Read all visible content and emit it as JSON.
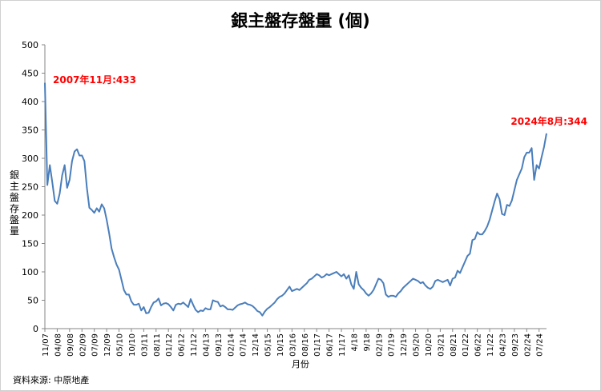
{
  "chart_data": {
    "type": "line",
    "title": "銀主盤存盤量 (個)",
    "xlabel": "月份",
    "ylabel": "銀主盤存盤量",
    "source": "資料來源: 中原地產",
    "ylim": [
      0,
      500
    ],
    "yticks": [
      0,
      50,
      100,
      150,
      200,
      250,
      300,
      350,
      400,
      450,
      500
    ],
    "grid": false,
    "line_color": "#4a7ebb",
    "annotation_color": "#ff0000",
    "xtick_labels": [
      "11/07",
      "04/08",
      "09/08",
      "02/09",
      "07/09",
      "12/09",
      "05/10",
      "10/10",
      "03/11",
      "08/11",
      "01/12",
      "06/12",
      "11/12",
      "04/13",
      "09/13",
      "02/14",
      "07/14",
      "12/14",
      "05/15",
      "10/15",
      "03/16",
      "08/16",
      "01/17",
      "06/17",
      "11/17",
      "4/18",
      "9/18",
      "02/19",
      "07/19",
      "12/19",
      "05/20",
      "10/20",
      "03/21",
      "08/21",
      "01/22",
      "06/22",
      "11/22",
      "04/23",
      "09/23",
      "02/24",
      "07/24"
    ],
    "annotations": [
      {
        "label": "2007年11月:433",
        "x": "2007-11",
        "y": 433
      },
      {
        "label": "2024年8月:344",
        "x": "2024-08",
        "y": 344
      }
    ],
    "x_start": "2007-11",
    "x_end": "2024-08",
    "values": [
      433,
      253,
      288,
      258,
      225,
      220,
      238,
      270,
      288,
      248,
      262,
      295,
      312,
      316,
      305,
      305,
      295,
      248,
      213,
      209,
      204,
      212,
      206,
      219,
      212,
      192,
      168,
      141,
      126,
      113,
      104,
      86,
      68,
      60,
      60,
      48,
      42,
      42,
      44,
      32,
      38,
      27,
      28,
      38,
      46,
      48,
      53,
      41,
      44,
      45,
      43,
      38,
      32,
      42,
      44,
      43,
      46,
      42,
      38,
      52,
      42,
      33,
      29,
      32,
      31,
      36,
      34,
      34,
      50,
      48,
      47,
      39,
      41,
      38,
      34,
      34,
      33,
      37,
      41,
      43,
      44,
      46,
      43,
      42,
      40,
      36,
      31,
      29,
      23,
      30,
      35,
      38,
      42,
      46,
      52,
      56,
      58,
      62,
      68,
      74,
      66,
      68,
      70,
      68,
      72,
      76,
      80,
      86,
      88,
      92,
      96,
      94,
      90,
      92,
      96,
      94,
      96,
      98,
      100,
      96,
      92,
      96,
      88,
      94,
      78,
      70,
      100,
      78,
      72,
      68,
      62,
      58,
      62,
      68,
      78,
      88,
      86,
      80,
      60,
      56,
      58,
      58,
      56,
      62,
      66,
      72,
      76,
      80,
      84,
      88,
      86,
      84,
      80,
      82,
      76,
      72,
      70,
      74,
      84,
      86,
      84,
      82,
      84,
      86,
      76,
      88,
      90,
      102,
      98,
      108,
      118,
      128,
      132,
      156,
      158,
      170,
      166,
      166,
      172,
      180,
      192,
      208,
      224,
      238,
      228,
      202,
      200,
      218,
      216,
      226,
      244,
      262,
      272,
      282,
      302,
      310,
      310,
      318,
      262,
      288,
      282,
      302,
      320,
      344
    ]
  }
}
